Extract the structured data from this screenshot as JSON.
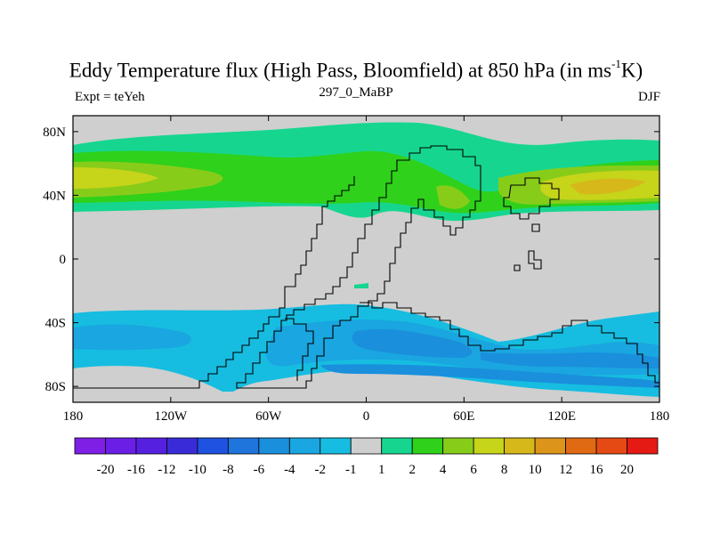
{
  "header": {
    "title_main": "Eddy Temperature flux (High Pass, Bloomfield) at 850 hPa (in ms",
    "title_sup": "-1",
    "title_end": "K)",
    "subtitle": "297_0_MaBP",
    "left_label": "Expt = teYeh",
    "right_label": "DJF"
  },
  "map": {
    "x_ticks": [
      {
        "value": -180,
        "label": "180"
      },
      {
        "value": -120,
        "label": "120W"
      },
      {
        "value": -60,
        "label": "60W"
      },
      {
        "value": 0,
        "label": "0"
      },
      {
        "value": 60,
        "label": "60E"
      },
      {
        "value": 120,
        "label": "120E"
      },
      {
        "value": 180,
        "label": "180"
      }
    ],
    "y_ticks": [
      {
        "value": 80,
        "label": "80N"
      },
      {
        "value": 40,
        "label": "40N"
      },
      {
        "value": 0,
        "label": "0"
      },
      {
        "value": -40,
        "label": "40S"
      },
      {
        "value": -80,
        "label": "80S"
      }
    ]
  },
  "colorbar": {
    "colors": [
      "#7f1fe6",
      "#6b1fe6",
      "#5520e0",
      "#3a2bd8",
      "#1f52e0",
      "#1f75dc",
      "#1a8fdc",
      "#1aa6e0",
      "#16bde0",
      "#cfcfcf",
      "#16d68f",
      "#2fd11a",
      "#88cc1a",
      "#c6d41a",
      "#d6b81a",
      "#dc941a",
      "#e06a14",
      "#e64a14",
      "#e61a14"
    ],
    "labels": [
      "-20",
      "-16",
      "-12",
      "-10",
      "-8",
      "-6",
      "-4",
      "-2",
      "-1",
      "1",
      "2",
      "4",
      "6",
      "8",
      "10",
      "12",
      "16",
      "20"
    ]
  }
}
